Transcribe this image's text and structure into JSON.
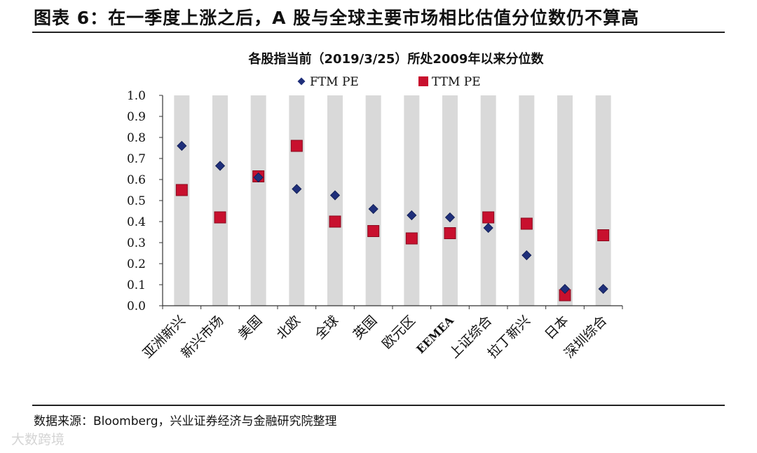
{
  "figure_title": "图表 6：在一季度上涨之后，A 股与全球主要市场相比估值分位数仍不算高",
  "source_note": "数据来源：Bloomberg，兴业证券经济与金融研究院整理",
  "watermark": "大数跨境",
  "colors": {
    "ftm": "#1f2f7a",
    "ttm": "#c8102e",
    "column": "#d9d9d9",
    "axis": "#333333"
  },
  "chart_data": {
    "type": "scatter",
    "title": "各股指当前（2019/3/25）所处2009年以来分位数",
    "xlabel": "",
    "ylabel": "",
    "ylim": [
      0,
      1
    ],
    "yticks": [
      "0.0",
      "0.1",
      "0.2",
      "0.3",
      "0.4",
      "0.5",
      "0.6",
      "0.7",
      "0.8",
      "0.9",
      "1.0"
    ],
    "categories": [
      "亚洲新兴",
      "新兴市场",
      "美国",
      "北欧",
      "全球",
      "英国",
      "欧元区",
      "EEMEA",
      "上证综合",
      "拉丁新兴",
      "日本",
      "深圳综合"
    ],
    "legend_position": "top",
    "series": [
      {
        "name": "FTM PE",
        "marker": "diamond",
        "values": [
          0.76,
          0.665,
          0.61,
          0.555,
          0.525,
          0.46,
          0.43,
          0.42,
          0.37,
          0.24,
          0.08,
          0.08
        ]
      },
      {
        "name": "TTM PE",
        "marker": "square",
        "values": [
          0.55,
          0.42,
          0.615,
          0.76,
          0.4,
          0.355,
          0.32,
          0.345,
          0.42,
          0.39,
          0.05,
          0.335
        ]
      }
    ]
  }
}
